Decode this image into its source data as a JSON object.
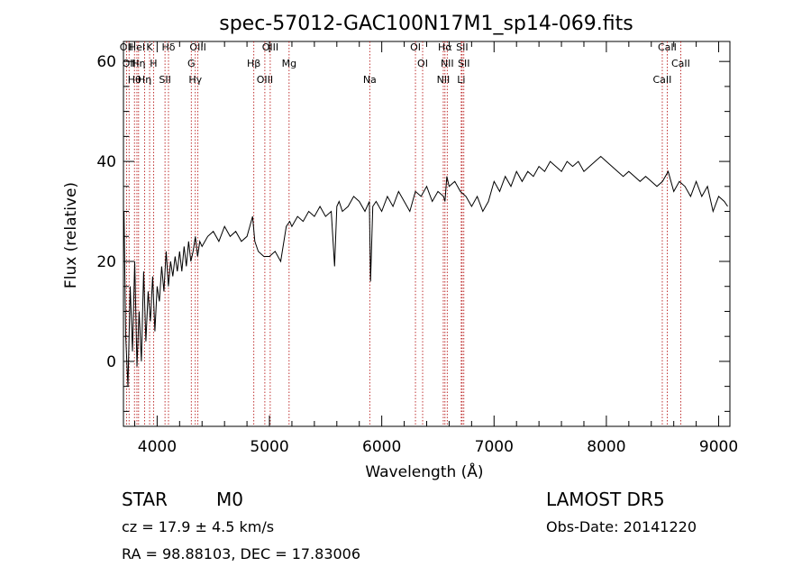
{
  "chart_data": {
    "type": "line",
    "title": "spec-57012-GAC100N17M1_sp14-069.fits",
    "xlabel": "Wavelength (Å)",
    "ylabel": "Flux (relative)",
    "xlim": [
      3700,
      9100
    ],
    "ylim": [
      -13,
      64
    ],
    "xticks": [
      4000,
      5000,
      6000,
      7000,
      8000,
      9000
    ],
    "xtick_labels": [
      "4000",
      "5000",
      "6000",
      "7000",
      "8000",
      "9000"
    ],
    "yticks": [
      0,
      20,
      40,
      60
    ],
    "ytick_labels": [
      "0",
      "20",
      "40",
      "60"
    ],
    "grid": false,
    "series": [
      {
        "values_x": [
          3705,
          3720,
          3740,
          3760,
          3780,
          3800,
          3820,
          3840,
          3860,
          3880,
          3900,
          3920,
          3940,
          3960,
          3980,
          4000,
          4020,
          4040,
          4060,
          4080,
          4100,
          4120,
          4140,
          4160,
          4180,
          4200,
          4220,
          4240,
          4260,
          4280,
          4300,
          4320,
          4340,
          4360,
          4380,
          4400,
          4450,
          4500,
          4550,
          4600,
          4650,
          4700,
          4750,
          4800,
          4850,
          4870,
          4900,
          4950,
          5000,
          5050,
          5100,
          5150,
          5180,
          5200,
          5250,
          5300,
          5350,
          5400,
          5450,
          5500,
          5550,
          5580,
          5600,
          5620,
          5650,
          5700,
          5750,
          5800,
          5850,
          5890,
          5900,
          5920,
          5950,
          6000,
          6050,
          6100,
          6150,
          6200,
          6250,
          6300,
          6350,
          6400,
          6450,
          6500,
          6550,
          6563,
          6580,
          6600,
          6650,
          6700,
          6750,
          6800,
          6850,
          6900,
          6950,
          7000,
          7050,
          7100,
          7150,
          7200,
          7250,
          7300,
          7350,
          7400,
          7450,
          7500,
          7550,
          7600,
          7650,
          7700,
          7750,
          7800,
          7850,
          7900,
          7950,
          8000,
          8050,
          8100,
          8150,
          8200,
          8250,
          8300,
          8350,
          8400,
          8450,
          8500,
          8550,
          8600,
          8650,
          8700,
          8750,
          8800,
          8850,
          8900,
          8950,
          9000,
          9050,
          9080
        ],
        "values_y": [
          30,
          5,
          -5,
          15,
          2,
          20,
          -1,
          10,
          0,
          18,
          4,
          14,
          8,
          17,
          6,
          15,
          12,
          19,
          14,
          22,
          15,
          20,
          17,
          21,
          18,
          22,
          18,
          23,
          19,
          24,
          20,
          22,
          25,
          21,
          24,
          23,
          25,
          26,
          24,
          27,
          25,
          26,
          24,
          25,
          29,
          24,
          22,
          21,
          21,
          22,
          20,
          27,
          28,
          27,
          29,
          28,
          30,
          29,
          31,
          29,
          30,
          19,
          31,
          32,
          30,
          31,
          33,
          32,
          30,
          32,
          16,
          31,
          32,
          30,
          33,
          31,
          34,
          32,
          30,
          34,
          33,
          35,
          32,
          34,
          33,
          32,
          37,
          35,
          36,
          34,
          33,
          31,
          33,
          30,
          32,
          36,
          34,
          37,
          35,
          38,
          36,
          38,
          37,
          39,
          38,
          40,
          39,
          38,
          40,
          39,
          40,
          38,
          39,
          40,
          41,
          40,
          39,
          38,
          37,
          38,
          37,
          36,
          37,
          36,
          35,
          36,
          38,
          34,
          36,
          35,
          33,
          36,
          33,
          35,
          30,
          33,
          32,
          31
        ]
      }
    ],
    "lines": [
      {
        "x": 3727,
        "label": "OII"
      },
      {
        "x": 3750,
        "label": "OII"
      },
      {
        "x": 3798,
        "label": "Hθ"
      },
      {
        "x": 3820,
        "label": "HeI"
      },
      {
        "x": 3835,
        "label": "Hη"
      },
      {
        "x": 3889,
        "label": "Hη"
      },
      {
        "x": 3933,
        "label": "K"
      },
      {
        "x": 3968,
        "label": "H"
      },
      {
        "x": 4070,
        "label": "SII"
      },
      {
        "x": 4101,
        "label": "Hδ"
      },
      {
        "x": 4304,
        "label": "G"
      },
      {
        "x": 4340,
        "label": "Hγ"
      },
      {
        "x": 4363,
        "label": "OIII"
      },
      {
        "x": 4861,
        "label": "Hβ"
      },
      {
        "x": 4959,
        "label": "OIII"
      },
      {
        "x": 5007,
        "label": "OIII"
      },
      {
        "x": 5175,
        "label": "Mg"
      },
      {
        "x": 5893,
        "label": "Na"
      },
      {
        "x": 6300,
        "label": "OI"
      },
      {
        "x": 6364,
        "label": "OI"
      },
      {
        "x": 6548,
        "label": "NII"
      },
      {
        "x": 6563,
        "label": "Hα"
      },
      {
        "x": 6583,
        "label": "NII"
      },
      {
        "x": 6708,
        "label": "Li"
      },
      {
        "x": 6716,
        "label": "SII"
      },
      {
        "x": 6731,
        "label": "SII"
      },
      {
        "x": 8498,
        "label": "CaII"
      },
      {
        "x": 8542,
        "label": "CaII"
      },
      {
        "x": 8662,
        "label": "CaII"
      }
    ]
  },
  "footer": {
    "class_label": "STAR",
    "subclass_label": "M0",
    "survey": "LAMOST DR5",
    "cz": "cz = 17.9 ± 4.5 km/s",
    "obs_date": "Obs-Date: 20141220",
    "radec": "RA =  98.88103, DEC =  17.83006"
  },
  "colors": {
    "line_marker": "#b00000",
    "spectrum": "#000000"
  }
}
